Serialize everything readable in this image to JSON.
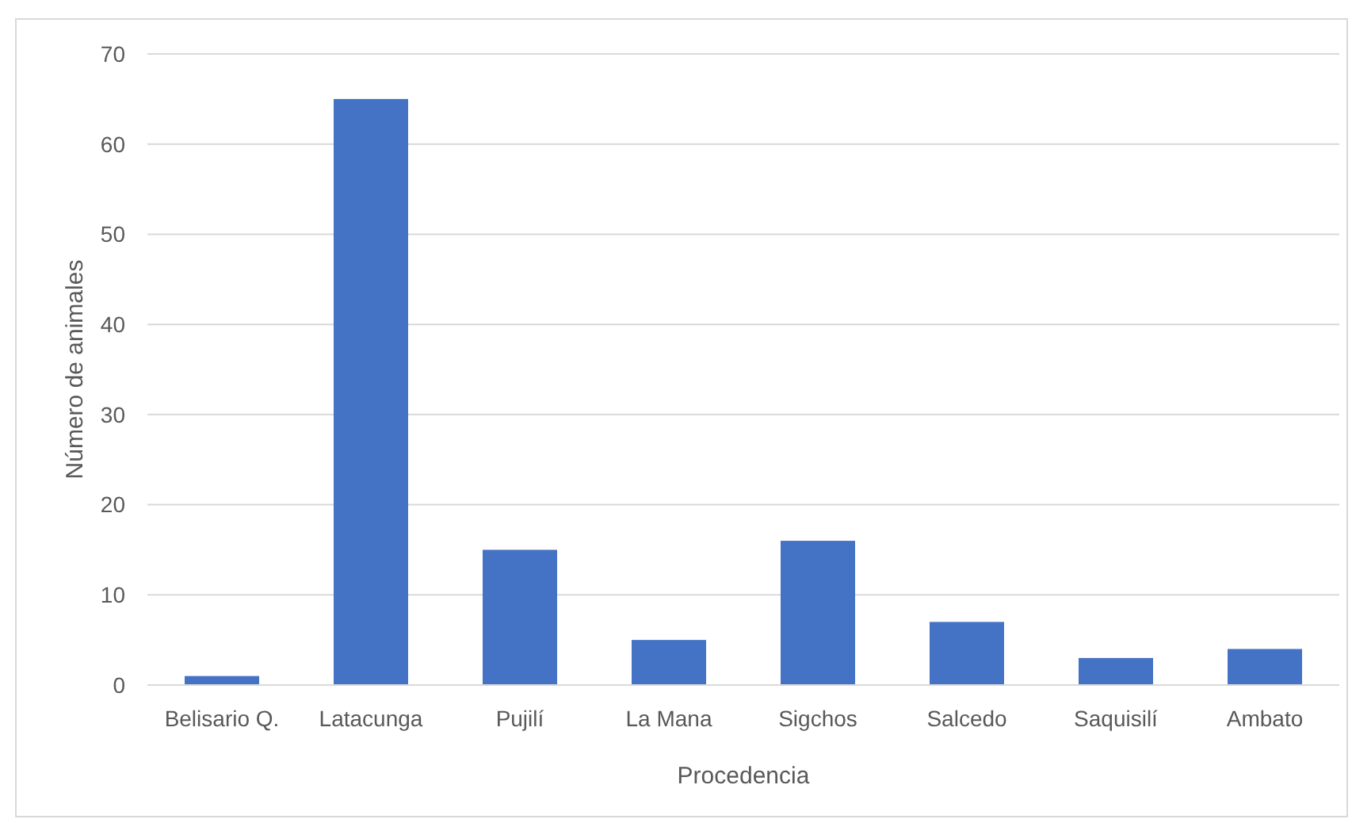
{
  "chart_data": {
    "type": "bar",
    "xlabel": "Procedencia",
    "ylabel": "Número de animales",
    "categories": [
      "Belisario Q.",
      "Latacunga",
      "Pujilí",
      "La Mana",
      "Sigchos",
      "Salcedo",
      "Saquisilí",
      "Ambato"
    ],
    "values": [
      1,
      65,
      15,
      5,
      16,
      7,
      3,
      4
    ],
    "color": "#4472c4",
    "ylim": [
      0,
      70
    ],
    "yticks": [
      0,
      10,
      20,
      30,
      40,
      50,
      60,
      70
    ],
    "grid": "y"
  }
}
